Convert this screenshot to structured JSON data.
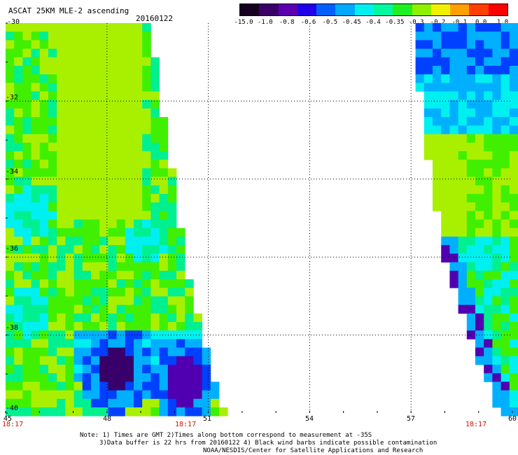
{
  "header": {
    "title": "ASCAT 25KM MLE-2 ascending",
    "date": "20160122"
  },
  "colorbar": {
    "labels": [
      "-15.0",
      "-1.0",
      "-0.8",
      "-0.6",
      "-0.5",
      "-0.45",
      "-0.4",
      "-0.35",
      "-0.3",
      "-0.2",
      "-0.1",
      "0.0",
      "1.0"
    ],
    "colors": [
      "#160020",
      "#3a0068",
      "#5a00b0",
      "#2000e8",
      "#0060ff",
      "#00a8ff",
      "#00f0f0",
      "#00f8a0",
      "#20f020",
      "#90f000",
      "#f0f000",
      "#ffa000",
      "#ff4000",
      "#ff0000"
    ]
  },
  "axes": {
    "lat_labels": [
      "-30",
      "-32",
      "-34",
      "-36",
      "-38",
      "-40"
    ],
    "lon_labels": [
      "45",
      "48",
      "51",
      "54",
      "57",
      "60"
    ],
    "time_labels": [
      "18:17",
      "18:17",
      "18:17"
    ]
  },
  "map_data": {
    "lon_range": [
      45,
      60
    ],
    "lat_range": [
      -40,
      -30
    ],
    "left_swath_east_edge": [
      [
        -30,
        49.3
      ],
      [
        -32,
        49.6
      ],
      [
        -34,
        50.0
      ],
      [
        -36,
        50.3
      ],
      [
        -38,
        50.8
      ],
      [
        -40,
        51.5
      ]
    ],
    "right_swath_west_edge": [
      [
        -30,
        57.0
      ],
      [
        -32,
        57.3
      ],
      [
        -34,
        57.6
      ],
      [
        -36,
        58.0
      ],
      [
        -38,
        58.7
      ],
      [
        -40,
        59.6
      ]
    ]
  },
  "footer": {
    "note_line1": "Note: 1) Times are GMT 2)Times along bottom correspond to measurement at -35S",
    "note_line2": "3)Data buffer is 22 hrs from 20160122 4) Black wind barbs indicate possible contamination",
    "note_line3": "NOAA/NESDIS/Center for Satellite Applications and Research"
  }
}
